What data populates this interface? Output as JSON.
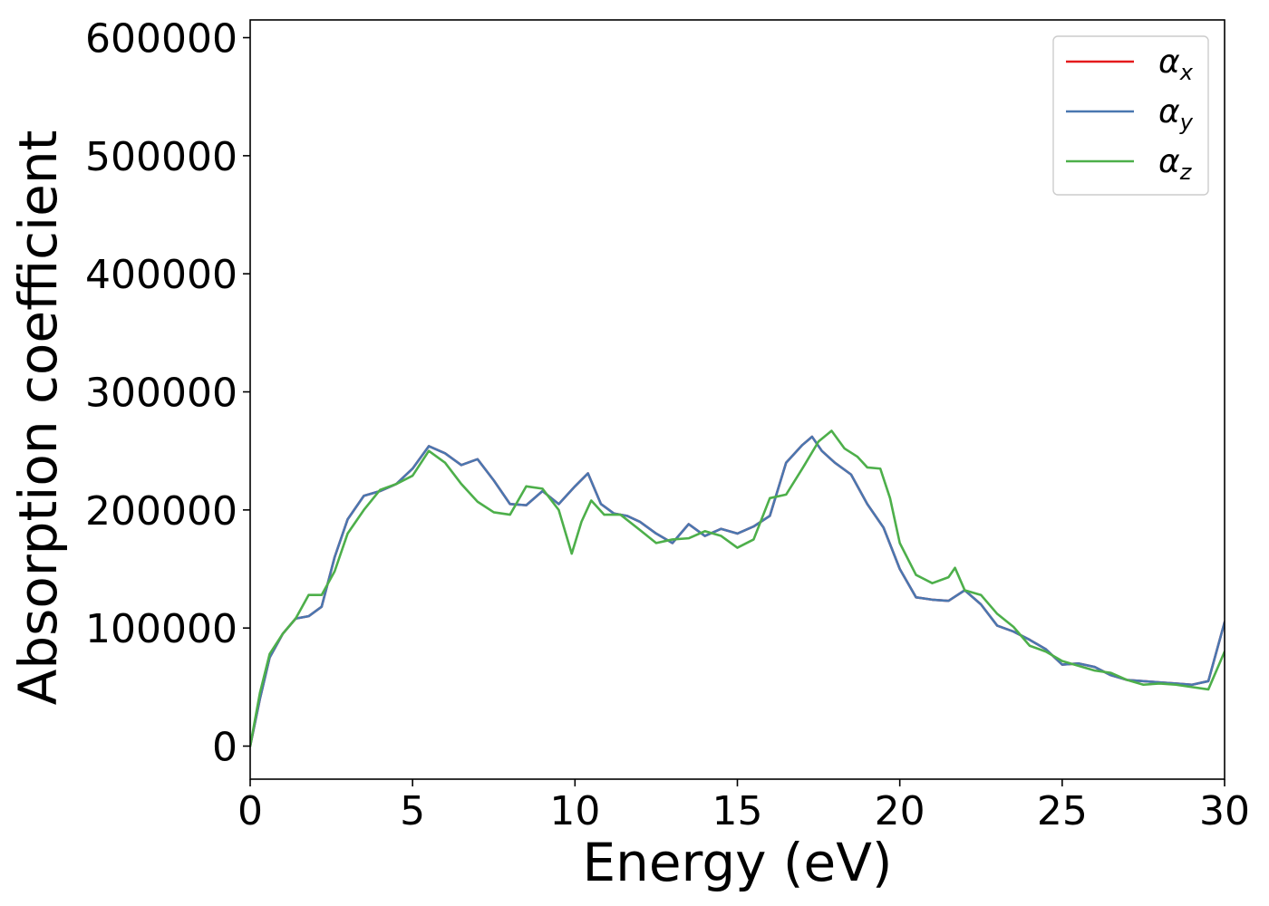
{
  "chart_data": {
    "type": "line",
    "title": "",
    "xlabel": "Energy (eV)",
    "ylabel": "Absorption coefficient",
    "xlim": [
      0,
      30
    ],
    "ylim": [
      -28000,
      615000
    ],
    "xticks": [
      0,
      5,
      10,
      15,
      20,
      25,
      30
    ],
    "yticks": [
      0,
      100000,
      200000,
      300000,
      400000,
      500000,
      600000
    ],
    "grid": false,
    "legend_position": "top-right",
    "series": [
      {
        "name": "αx",
        "name_base": "α",
        "name_sub": "x",
        "color": "#e41a1c",
        "x": [
          0,
          0.3,
          0.6,
          1.0,
          1.4,
          1.8,
          2.2,
          2.6,
          3.0,
          3.5,
          4.0,
          4.5,
          5.0,
          5.5,
          6.0,
          6.5,
          7.0,
          7.5,
          8.0,
          8.5,
          9.0,
          9.5,
          10.0,
          10.4,
          10.8,
          11.2,
          11.6,
          12.0,
          12.5,
          13.0,
          13.5,
          14.0,
          14.5,
          15.0,
          15.5,
          16.0,
          16.5,
          17.0,
          17.3,
          17.6,
          18.0,
          18.5,
          19.0,
          19.5,
          20.0,
          20.5,
          21.0,
          21.5,
          22.0,
          22.5,
          23.0,
          23.5,
          24.0,
          24.5,
          25.0,
          25.5,
          26.0,
          26.5,
          27.0,
          27.5,
          28.0,
          28.5,
          29.0,
          29.5,
          30.0
        ],
        "y": [
          0,
          40000,
          75000,
          95000,
          108000,
          110000,
          118000,
          160000,
          192000,
          212000,
          216000,
          222000,
          235000,
          254000,
          248000,
          238000,
          243000,
          225000,
          205000,
          204000,
          216000,
          205000,
          220000,
          231000,
          205000,
          197000,
          195000,
          190000,
          180000,
          172000,
          188000,
          178000,
          184000,
          180000,
          186000,
          195000,
          240000,
          255000,
          262000,
          250000,
          240000,
          230000,
          205000,
          185000,
          150000,
          126000,
          124000,
          123000,
          132000,
          120000,
          102000,
          97000,
          90000,
          82000,
          69000,
          70000,
          67000,
          60000,
          56000,
          55000,
          54000,
          53000,
          52000,
          55000,
          105000
        ]
      },
      {
        "name": "αy",
        "name_base": "α",
        "name_sub": "y",
        "color": "#4a77b0",
        "x": [
          0,
          0.3,
          0.6,
          1.0,
          1.4,
          1.8,
          2.2,
          2.6,
          3.0,
          3.5,
          4.0,
          4.5,
          5.0,
          5.5,
          6.0,
          6.5,
          7.0,
          7.5,
          8.0,
          8.5,
          9.0,
          9.5,
          10.0,
          10.4,
          10.8,
          11.2,
          11.6,
          12.0,
          12.5,
          13.0,
          13.5,
          14.0,
          14.5,
          15.0,
          15.5,
          16.0,
          16.5,
          17.0,
          17.3,
          17.6,
          18.0,
          18.5,
          19.0,
          19.5,
          20.0,
          20.5,
          21.0,
          21.5,
          22.0,
          22.5,
          23.0,
          23.5,
          24.0,
          24.5,
          25.0,
          25.5,
          26.0,
          26.5,
          27.0,
          27.5,
          28.0,
          28.5,
          29.0,
          29.5,
          30.0
        ],
        "y": [
          0,
          40000,
          75000,
          95000,
          108000,
          110000,
          118000,
          160000,
          192000,
          212000,
          216000,
          222000,
          235000,
          254000,
          248000,
          238000,
          243000,
          225000,
          205000,
          204000,
          216000,
          205000,
          220000,
          231000,
          205000,
          197000,
          195000,
          190000,
          180000,
          172000,
          188000,
          178000,
          184000,
          180000,
          186000,
          195000,
          240000,
          255000,
          262000,
          250000,
          240000,
          230000,
          205000,
          185000,
          150000,
          126000,
          124000,
          123000,
          132000,
          120000,
          102000,
          97000,
          90000,
          82000,
          69000,
          70000,
          67000,
          60000,
          56000,
          55000,
          54000,
          53000,
          52000,
          55000,
          105000
        ]
      },
      {
        "name": "αz",
        "name_base": "α",
        "name_sub": "z",
        "color": "#4daf4a",
        "x": [
          0,
          0.3,
          0.6,
          1.0,
          1.4,
          1.8,
          2.2,
          2.6,
          3.0,
          3.5,
          4.0,
          4.5,
          5.0,
          5.5,
          6.0,
          6.5,
          7.0,
          7.5,
          8.0,
          8.5,
          9.0,
          9.5,
          9.9,
          10.2,
          10.5,
          10.9,
          11.4,
          12.0,
          12.5,
          13.0,
          13.5,
          14.0,
          14.5,
          15.0,
          15.5,
          16.0,
          16.5,
          17.0,
          17.5,
          17.9,
          18.3,
          18.7,
          19.0,
          19.4,
          19.7,
          20.0,
          20.5,
          21.0,
          21.5,
          21.7,
          22.0,
          22.5,
          23.0,
          23.5,
          24.0,
          24.5,
          25.0,
          25.5,
          26.0,
          26.5,
          27.0,
          27.5,
          28.0,
          28.5,
          29.0,
          29.5,
          30.0
        ],
        "y": [
          0,
          45000,
          78000,
          95000,
          108000,
          128000,
          128000,
          148000,
          180000,
          200000,
          217000,
          222000,
          229000,
          250000,
          240000,
          222000,
          207000,
          198000,
          196000,
          220000,
          218000,
          200000,
          163000,
          190000,
          208000,
          196000,
          196000,
          183000,
          172000,
          175000,
          176000,
          182000,
          178000,
          168000,
          175000,
          210000,
          213000,
          235000,
          258000,
          267000,
          252000,
          245000,
          236000,
          235000,
          210000,
          172000,
          145000,
          138000,
          143000,
          151000,
          132000,
          128000,
          112000,
          101000,
          85000,
          80000,
          72000,
          68000,
          64000,
          62000,
          56000,
          52000,
          53000,
          52000,
          50000,
          48000,
          80000
        ]
      }
    ]
  }
}
